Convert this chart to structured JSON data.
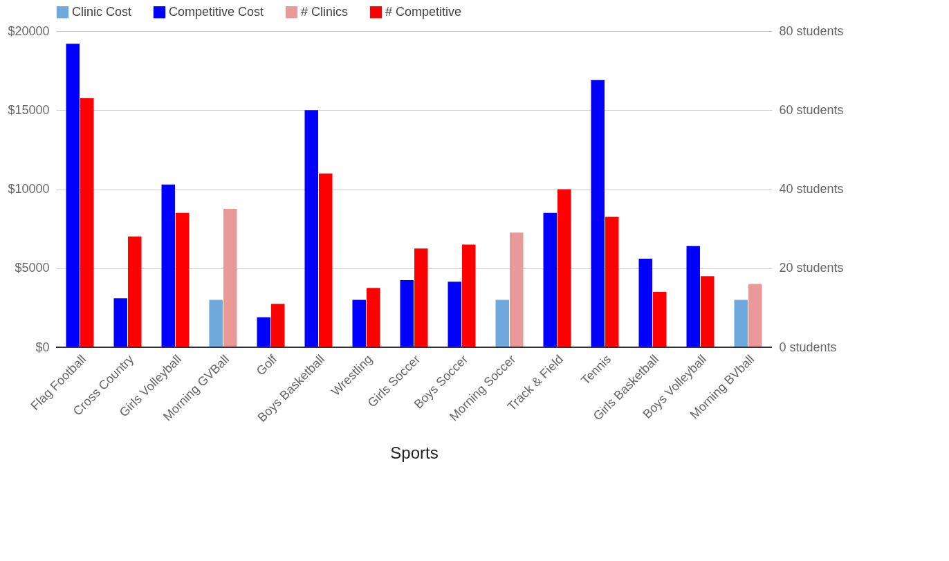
{
  "chart_data": {
    "type": "bar",
    "xlabel": "Sports",
    "categories": [
      "Flag Football",
      "Cross Country",
      "Girls Volleyball",
      "Morning GVBall",
      "Golf",
      "Boys Basketball",
      "Wrestling",
      "Girls Soccer",
      "Boys Soccer",
      "Morning Soccer",
      "Track & Field",
      "Tennis",
      "Girls Basketball",
      "Boys Volleyball",
      "Morning BVball"
    ],
    "series": [
      {
        "name": "Clinic Cost",
        "color": "#6fa8dc",
        "values": [
          null,
          null,
          null,
          3000,
          null,
          null,
          null,
          null,
          null,
          3000,
          null,
          null,
          null,
          null,
          3000
        ]
      },
      {
        "name": "Competitive Cost",
        "color": "#0000ff",
        "values": [
          19200,
          3100,
          10300,
          null,
          1900,
          15000,
          3000,
          4250,
          4150,
          null,
          8500,
          16900,
          5600,
          6400,
          null
        ]
      },
      {
        "name": "# Clinics",
        "color": "#ea9999",
        "axis": "y2",
        "values": [
          null,
          null,
          null,
          35,
          null,
          null,
          null,
          null,
          null,
          29,
          null,
          null,
          null,
          null,
          16
        ]
      },
      {
        "name": "# Competitive",
        "color": "#ff0000",
        "axis": "y2",
        "values": [
          63,
          28,
          34,
          null,
          11,
          44,
          15,
          25,
          26,
          null,
          40,
          33,
          14,
          18,
          null
        ]
      }
    ],
    "ylim": [
      0,
      20000
    ],
    "yticks": [
      {
        "value": 0,
        "label": "$0"
      },
      {
        "value": 5000,
        "label": "$5000"
      },
      {
        "value": 10000,
        "label": "$10000"
      },
      {
        "value": 15000,
        "label": "$15000"
      },
      {
        "value": 20000,
        "label": "$20000"
      }
    ],
    "y2lim": [
      0,
      80
    ],
    "y2ticks": [
      {
        "value": 0,
        "label": "0 students"
      },
      {
        "value": 20,
        "label": "20 students"
      },
      {
        "value": 40,
        "label": "40 students"
      },
      {
        "value": 60,
        "label": "60 students"
      },
      {
        "value": 80,
        "label": "80 students"
      }
    ],
    "grid": "y",
    "legend": "top"
  }
}
